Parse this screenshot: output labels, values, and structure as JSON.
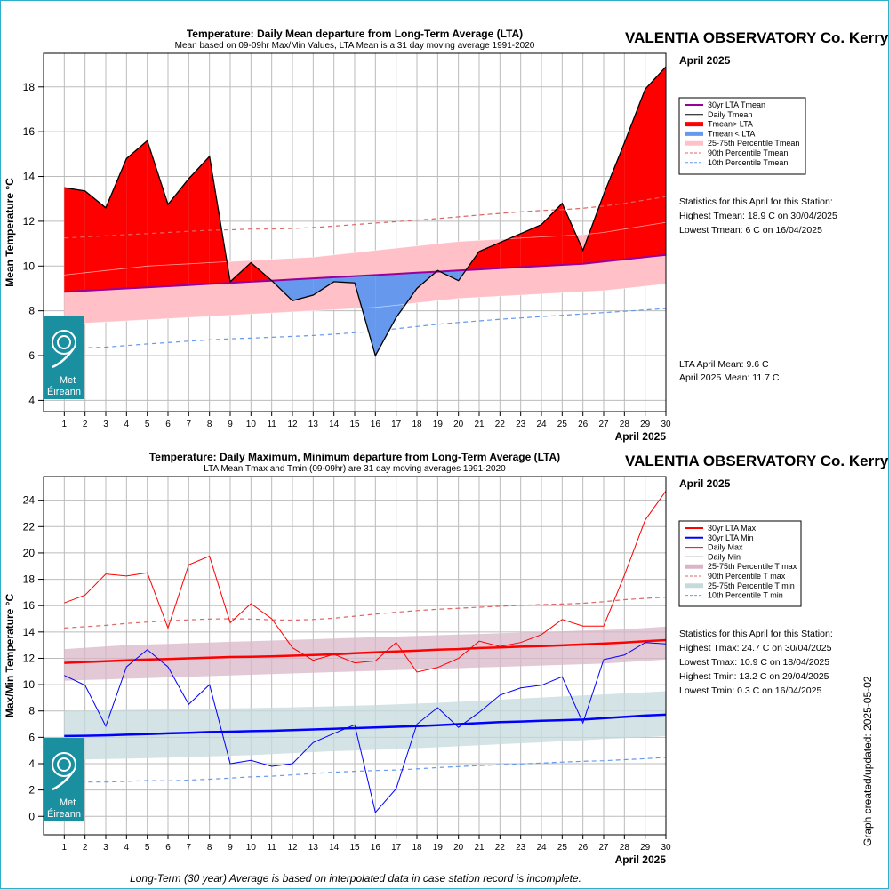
{
  "chart_data": [
    {
      "type": "area",
      "title": "Temperature: Daily Mean departure from Long-Term Average (LTA)",
      "subtitle": "Mean based on 09-09hr Max/Min Values, LTA Mean is a 31 day moving average 1991-2020",
      "station": "VALENTIA OBSERVATORY Co. Kerry",
      "month": "April 2025",
      "xlabel": "April 2025",
      "ylabel": "Mean Temperature °C",
      "xlim": [
        0,
        30
      ],
      "ylim": [
        3.5,
        19.5
      ],
      "yticks": [
        4,
        6,
        8,
        10,
        12,
        14,
        16,
        18
      ],
      "grid": true,
      "legend_position": "right",
      "x": [
        1,
        2,
        3,
        4,
        5,
        6,
        7,
        8,
        9,
        10,
        11,
        12,
        13,
        14,
        15,
        16,
        17,
        18,
        19,
        20,
        21,
        22,
        23,
        24,
        25,
        26,
        27,
        28,
        29,
        30
      ],
      "series": [
        {
          "name": "30yr LTA Tmean",
          "color": "#990099",
          "values": [
            8.85,
            8.9,
            8.95,
            9.0,
            9.05,
            9.1,
            9.15,
            9.2,
            9.25,
            9.3,
            9.35,
            9.4,
            9.45,
            9.5,
            9.55,
            9.6,
            9.65,
            9.7,
            9.75,
            9.8,
            9.85,
            9.9,
            9.95,
            10.0,
            10.05,
            10.1,
            10.2,
            10.3,
            10.4,
            10.5
          ]
        },
        {
          "name": "Daily Tmean",
          "color": "#000000",
          "values": [
            13.5,
            13.35,
            12.6,
            14.8,
            15.6,
            12.75,
            13.9,
            14.9,
            9.3,
            10.15,
            9.35,
            8.45,
            8.7,
            9.3,
            9.25,
            6.0,
            7.7,
            9.0,
            9.8,
            9.35,
            10.65,
            11.05,
            11.45,
            11.85,
            12.8,
            10.7,
            13.2,
            15.5,
            17.9,
            18.9
          ]
        },
        {
          "name": "25th Percentile Tmean",
          "values": [
            7.4,
            7.45,
            7.5,
            7.55,
            7.6,
            7.65,
            7.7,
            7.75,
            7.8,
            7.85,
            7.9,
            7.95,
            8.0,
            8.05,
            8.1,
            8.15,
            8.25,
            8.35,
            8.45,
            8.55,
            8.6,
            8.65,
            8.7,
            8.75,
            8.8,
            8.85,
            8.9,
            9.0,
            9.1,
            9.2
          ]
        },
        {
          "name": "75th Percentile Tmean",
          "values": [
            9.6,
            9.7,
            9.8,
            9.9,
            10.0,
            10.05,
            10.1,
            10.15,
            10.2,
            10.25,
            10.3,
            10.35,
            10.4,
            10.5,
            10.6,
            10.7,
            10.8,
            10.9,
            11.0,
            11.1,
            11.15,
            11.2,
            11.25,
            11.3,
            11.35,
            11.4,
            11.5,
            11.65,
            11.8,
            11.95
          ]
        },
        {
          "name": "90th Percentile Tmean",
          "color": "#dd6666",
          "values": [
            11.25,
            11.3,
            11.35,
            11.4,
            11.45,
            11.5,
            11.55,
            11.6,
            11.62,
            11.65,
            11.65,
            11.68,
            11.72,
            11.78,
            11.85,
            11.92,
            11.98,
            12.05,
            12.12,
            12.2,
            12.28,
            12.35,
            12.42,
            12.48,
            12.52,
            12.58,
            12.68,
            12.8,
            12.95,
            13.1
          ]
        },
        {
          "name": "10th Percentile Tmean",
          "color": "#6699ee",
          "values": [
            6.3,
            6.35,
            6.38,
            6.45,
            6.52,
            6.58,
            6.65,
            6.7,
            6.75,
            6.78,
            6.82,
            6.86,
            6.9,
            6.96,
            7.02,
            7.1,
            7.2,
            7.3,
            7.4,
            7.48,
            7.55,
            7.62,
            7.68,
            7.74,
            7.8,
            7.86,
            7.92,
            7.98,
            8.04,
            8.1
          ]
        }
      ],
      "legend": [
        "30yr LTA Tmean",
        "Daily Tmean",
        "Tmean> LTA",
        "Tmean < LTA",
        "25-75th Percentile Tmean",
        "90th Percentile Tmean",
        "10th Percentile Tmean"
      ],
      "colors": {
        "above": "#ff0000",
        "below": "#6699ee",
        "band": "#ffc0c8"
      },
      "stats": [
        "Statistics for this April for this Station:",
        "Highest Tmean: 18.9 C on 30/04/2025",
        "Lowest Tmean: 6 C on 16/04/2025"
      ],
      "means": [
        "LTA April Mean: 9.6 C",
        "April 2025 Mean: 11.7 C"
      ]
    },
    {
      "type": "line",
      "title": "Temperature: Daily Maximum, Minimum departure from Long-Term Average (LTA)",
      "subtitle": "LTA Mean Tmax and Tmin (09-09hr) are 31 day moving averages 1991-2020",
      "station": "VALENTIA OBSERVATORY Co. Kerry",
      "month": "April 2025",
      "xlabel": "April 2025",
      "ylabel": "Max/Min Temperature °C",
      "xlim": [
        0,
        30
      ],
      "ylim": [
        -1.4,
        25.8
      ],
      "yticks": [
        0,
        2,
        4,
        6,
        8,
        10,
        12,
        14,
        16,
        18,
        20,
        22,
        24
      ],
      "grid": true,
      "legend_position": "right",
      "x": [
        1,
        2,
        3,
        4,
        5,
        6,
        7,
        8,
        9,
        10,
        11,
        12,
        13,
        14,
        15,
        16,
        17,
        18,
        19,
        20,
        21,
        22,
        23,
        24,
        25,
        26,
        27,
        28,
        29,
        30
      ],
      "series": [
        {
          "name": "30yr LTA Max",
          "color": "#ff0000",
          "values": [
            11.65,
            11.72,
            11.78,
            11.85,
            11.9,
            11.95,
            12.0,
            12.05,
            12.1,
            12.12,
            12.15,
            12.2,
            12.25,
            12.3,
            12.38,
            12.45,
            12.52,
            12.58,
            12.65,
            12.7,
            12.78,
            12.82,
            12.88,
            12.92,
            12.98,
            13.05,
            13.12,
            13.2,
            13.3,
            13.38
          ]
        },
        {
          "name": "30yr LTA Min",
          "color": "#0000ff",
          "values": [
            6.1,
            6.12,
            6.15,
            6.2,
            6.25,
            6.3,
            6.35,
            6.4,
            6.43,
            6.47,
            6.5,
            6.55,
            6.6,
            6.65,
            6.7,
            6.75,
            6.8,
            6.85,
            6.92,
            7.0,
            7.08,
            7.15,
            7.2,
            7.25,
            7.3,
            7.35,
            7.45,
            7.55,
            7.65,
            7.72
          ]
        },
        {
          "name": "Daily Max",
          "color": "#ff0000",
          "values": [
            16.2,
            16.8,
            18.4,
            18.25,
            18.5,
            14.3,
            19.1,
            19.75,
            14.7,
            16.15,
            15.0,
            12.8,
            11.85,
            12.3,
            11.65,
            11.8,
            13.2,
            10.95,
            11.3,
            12.0,
            13.3,
            12.9,
            13.2,
            13.8,
            14.95,
            14.45,
            14.45,
            18.3,
            22.5,
            24.7
          ]
        },
        {
          "name": "Daily Min",
          "color": "#0000ff",
          "values": [
            10.7,
            9.95,
            6.85,
            11.35,
            12.65,
            11.35,
            8.5,
            10.0,
            4.0,
            4.25,
            3.8,
            4.0,
            5.6,
            6.3,
            6.95,
            0.3,
            2.1,
            7.0,
            8.25,
            6.75,
            7.9,
            9.2,
            9.75,
            9.95,
            10.6,
            7.1,
            11.9,
            12.25,
            13.2,
            13.1
          ]
        },
        {
          "name": "25th Percentile T max",
          "values": [
            10.3,
            10.35,
            10.4,
            10.45,
            10.5,
            10.55,
            10.6,
            10.65,
            10.7,
            10.75,
            10.8,
            10.85,
            10.9,
            10.95,
            11.0,
            11.05,
            11.1,
            11.15,
            11.2,
            11.25,
            11.3,
            11.35,
            11.4,
            11.45,
            11.5,
            11.55,
            11.6,
            11.7,
            11.8,
            11.9
          ]
        },
        {
          "name": "75th Percentile T max",
          "values": [
            12.7,
            12.8,
            12.9,
            13.0,
            13.05,
            13.1,
            13.15,
            13.2,
            13.25,
            13.3,
            13.35,
            13.4,
            13.45,
            13.5,
            13.55,
            13.6,
            13.65,
            13.7,
            13.75,
            13.8,
            13.85,
            13.9,
            13.95,
            14.0,
            14.05,
            14.1,
            14.15,
            14.2,
            14.3,
            14.4
          ]
        },
        {
          "name": "90th Percentile T max",
          "color": "#dd6666",
          "values": [
            14.3,
            14.4,
            14.5,
            14.65,
            14.75,
            14.85,
            14.92,
            14.98,
            15.0,
            14.98,
            14.92,
            14.9,
            14.95,
            15.05,
            15.2,
            15.35,
            15.5,
            15.62,
            15.72,
            15.8,
            15.88,
            15.95,
            16.02,
            16.08,
            16.12,
            16.18,
            16.3,
            16.45,
            16.55,
            16.65
          ]
        },
        {
          "name": "25th Percentile T min",
          "values": [
            4.3,
            4.32,
            4.35,
            4.38,
            4.42,
            4.46,
            4.5,
            4.55,
            4.6,
            4.65,
            4.72,
            4.8,
            4.88,
            4.95,
            5.0,
            5.05,
            5.1,
            5.18,
            5.25,
            5.32,
            5.4,
            5.48,
            5.55,
            5.62,
            5.7,
            5.78,
            5.86,
            5.94,
            6.02,
            6.1
          ]
        },
        {
          "name": "75th Percentile T min",
          "values": [
            8.0,
            8.02,
            8.05,
            8.08,
            8.1,
            8.12,
            8.15,
            8.18,
            8.2,
            8.22,
            8.25,
            8.28,
            8.32,
            8.36,
            8.4,
            8.45,
            8.5,
            8.56,
            8.62,
            8.7,
            8.78,
            8.86,
            8.94,
            9.02,
            9.1,
            9.18,
            9.26,
            9.34,
            9.42,
            9.5
          ]
        },
        {
          "name": "10th Percentile T min",
          "color": "#6699ee",
          "values": [
            2.65,
            2.6,
            2.6,
            2.65,
            2.72,
            2.7,
            2.75,
            2.82,
            2.9,
            3.0,
            3.05,
            3.15,
            3.25,
            3.35,
            3.42,
            3.48,
            3.52,
            3.6,
            3.7,
            3.78,
            3.85,
            3.92,
            3.98,
            4.05,
            4.12,
            4.18,
            4.22,
            4.3,
            4.38,
            4.48
          ]
        }
      ],
      "legend": [
        "30yr LTA Max",
        "30yr LTA Min",
        "Daily Max",
        "Daily Min",
        "25-75th Percentile T max",
        "90th Percentile T max",
        "25-75th Percentile T min",
        "10th Percentile T min"
      ],
      "colors": {
        "band_max": "#d9b5c8",
        "band_min": "#c5dadc"
      },
      "stats": [
        "Statistics for this April for this Station:",
        "Highest Tmax: 24.7 C on 30/04/2025",
        "Lowest Tmax: 10.9 C on 18/04/2025",
        "Highest Tmin: 13.2 C on 29/04/2025",
        "Lowest Tmin: 0.3 C on 16/04/2025"
      ]
    }
  ],
  "logo": {
    "name": "Met Éireann",
    "color": "#1a8fa0"
  },
  "footnote": "Long-Term (30 year) Average is based on interpolated data in case station record is incomplete.",
  "updated": "Graph created/updated:  2025-05-02"
}
